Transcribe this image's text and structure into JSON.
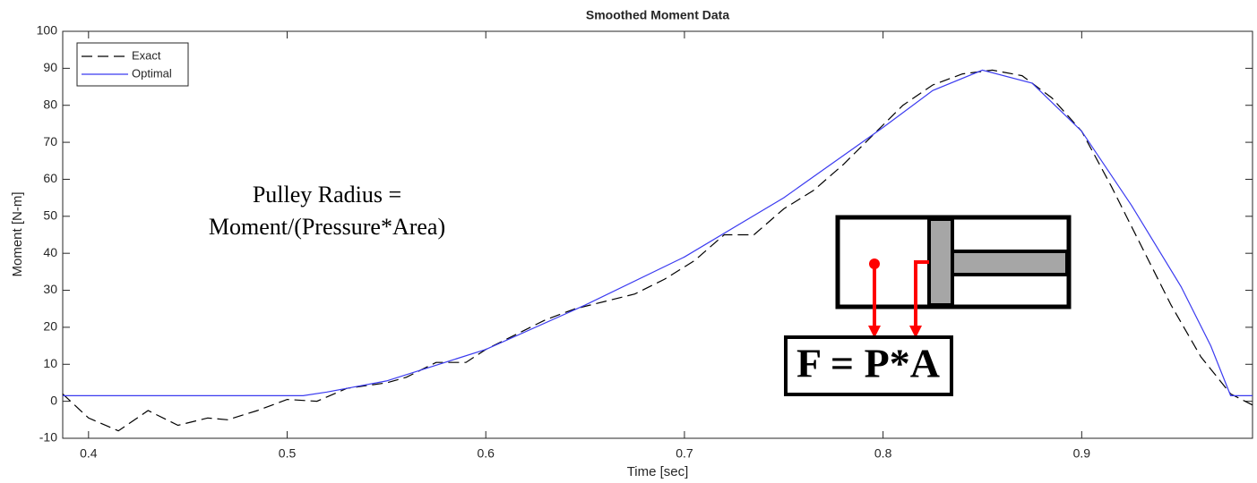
{
  "chart_data": {
    "type": "line",
    "title": "Smoothed Moment Data",
    "x_label": "Time [sec]",
    "y_label": "Moment [N-m]",
    "xlim": [
      0.387,
      0.986
    ],
    "ylim": [
      -10,
      100
    ],
    "xticks": [
      0.4,
      0.5,
      0.6,
      0.7,
      0.8,
      0.9
    ],
    "yticks": [
      -10,
      0,
      10,
      20,
      30,
      40,
      50,
      60,
      70,
      80,
      90,
      100
    ],
    "legend": "upper left",
    "series": [
      {
        "name": "Exact",
        "color": "#000000",
        "dash": true,
        "x": [
          0.387,
          0.4,
          0.415,
          0.43,
          0.445,
          0.46,
          0.47,
          0.485,
          0.5,
          0.515,
          0.53,
          0.55,
          0.56,
          0.575,
          0.59,
          0.6,
          0.615,
          0.63,
          0.645,
          0.66,
          0.675,
          0.69,
          0.705,
          0.72,
          0.735,
          0.75,
          0.765,
          0.78,
          0.795,
          0.81,
          0.825,
          0.84,
          0.855,
          0.87,
          0.885,
          0.9,
          0.915,
          0.93,
          0.945,
          0.96,
          0.975,
          0.986
        ],
        "values": [
          2,
          -4.5,
          -8,
          -2.5,
          -6.5,
          -4.5,
          -5,
          -2.5,
          0.5,
          0,
          3.5,
          5,
          6.5,
          10.5,
          10.5,
          14,
          18,
          22,
          25,
          27,
          29,
          33,
          38,
          45,
          45,
          52,
          57,
          64,
          72,
          80,
          85.5,
          88.5,
          89.5,
          88,
          82,
          73,
          58,
          42,
          26,
          12,
          2,
          -1
        ]
      },
      {
        "name": "Optimal",
        "color": "#3b3bf0",
        "dash": false,
        "x": [
          0.387,
          0.508,
          0.52,
          0.55,
          0.6,
          0.65,
          0.7,
          0.75,
          0.8,
          0.825,
          0.85,
          0.875,
          0.9,
          0.925,
          0.95,
          0.965,
          0.975,
          0.986
        ],
        "values": [
          1.5,
          1.5,
          2.5,
          5.5,
          14,
          26,
          39,
          55,
          74,
          84,
          89.5,
          86,
          73,
          53,
          31,
          15,
          1.5,
          1.5
        ]
      }
    ],
    "annotations": [
      "Pulley Radius =",
      "Moment/(Pressure*Area)",
      "F = P*A"
    ]
  }
}
